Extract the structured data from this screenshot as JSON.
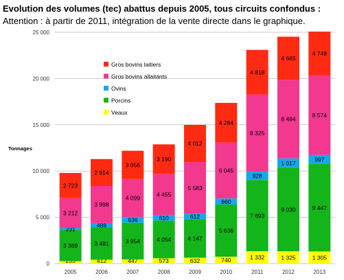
{
  "header": {
    "title": "Evolution des volumes (tec) abattus depuis 2005, tous circuits confondus :",
    "subtitle": "Attention : à partir de 2011, intégration de la vente directe dans le graphique."
  },
  "chart_data": {
    "type": "bar",
    "stacked": true,
    "categories": [
      "2005",
      "2006",
      "2007",
      "2008",
      "2009",
      "2010",
      "2011",
      "2012",
      "2013"
    ],
    "series": [
      {
        "name": "Veaux",
        "color": "#ffff00",
        "values": [
          255,
          412,
          447,
          573,
          632,
          740,
          1332,
          1325,
          1305
        ],
        "labels": [
          "255",
          "412",
          "447",
          "573",
          "632",
          "740",
          "1 332",
          "1 325",
          "1 305"
        ]
      },
      {
        "name": "Porcins",
        "color": "#13b51a",
        "values": [
          3369,
          3481,
          3954,
          4054,
          4147,
          5636,
          7693,
          9030,
          9447
        ],
        "labels": [
          "3 369",
          "3 481",
          "3 954",
          "4 054",
          "4 147",
          "5 636",
          "7 693",
          "9 030",
          "9 447"
        ]
      },
      {
        "name": "Ovins",
        "color": "#16a8e8",
        "values": [
          231,
          488,
          636,
          610,
          612,
          660,
          928,
          1017,
          997
        ],
        "labels": [
          "231",
          "488",
          "636",
          "610",
          "612",
          "660",
          "928",
          "1 017",
          "997"
        ]
      },
      {
        "name": "Gros bovins allaitants",
        "color": "#f2388f",
        "values": [
          3212,
          3998,
          4099,
          4455,
          5583,
          6045,
          8325,
          8484,
          8574
        ],
        "labels": [
          "3 212",
          "3 998",
          "4 099",
          "4 455",
          "5 583",
          "6 045",
          "8 325",
          "8 484",
          "8 574"
        ]
      },
      {
        "name": "Gros bovins laitiers",
        "color": "#ff2a12",
        "values": [
          2723,
          2914,
          3056,
          3190,
          4012,
          4284,
          4818,
          4665,
          4748
        ],
        "labels": [
          "2 723",
          "2 914",
          "3 056",
          "3 190",
          "4 012",
          "4 284",
          "4 818",
          "4 665",
          "4 748"
        ]
      }
    ],
    "legend": {
      "placement": "top-left",
      "order": [
        "Gros bovins laitiers",
        "Gros bovins allaitants",
        "Ovins",
        "Porcins",
        "Veaux"
      ]
    },
    "ylabel": "Tonnages",
    "ylim": [
      0,
      25000
    ],
    "yticks": [
      0,
      5000,
      10000,
      15000,
      20000,
      25000
    ],
    "ytick_labels": [
      "0",
      "5 000",
      "10 000",
      "15 000",
      "20 000",
      "25 000"
    ],
    "grid": "horizontal"
  }
}
